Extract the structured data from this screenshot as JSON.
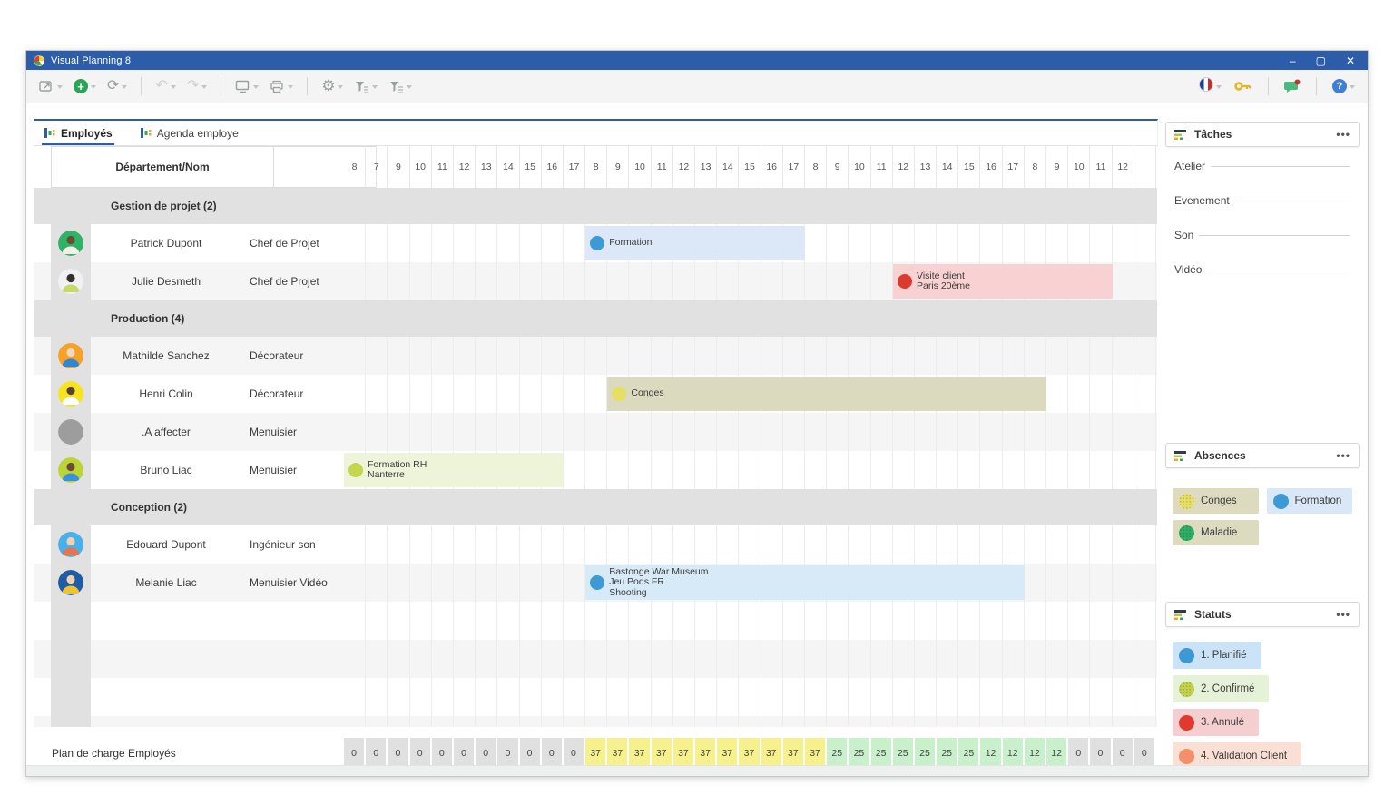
{
  "window": {
    "title": "Visual Planning 8",
    "controls": {
      "minimize": "–",
      "maximize": "▢",
      "close": "✕"
    }
  },
  "toolbar": {
    "left": [
      "window-new",
      "add",
      "refresh",
      "|",
      "undo",
      "redo",
      "|",
      "display",
      "print",
      "|",
      "settings",
      "filter-rows",
      "filter-columns"
    ],
    "right": [
      "language-french-flag",
      "key",
      "|",
      "share",
      "|",
      "help"
    ]
  },
  "tabs": [
    {
      "label": "Employés",
      "active": true
    },
    {
      "label": "Agenda employe",
      "active": false
    }
  ],
  "table": {
    "header": "Département/Nom",
    "rows": [
      {
        "type": "group",
        "label": "Gestion de projet (2)"
      },
      {
        "type": "person",
        "name": "Patrick Dupont",
        "role": "Chef de Projet",
        "shade": 0,
        "avatar": {
          "bg": "#2fb467",
          "skin": "#6d4c33",
          "shirt": "#f2efe6"
        },
        "event": {
          "start": 11,
          "span": 10,
          "bg": "#dce8f7",
          "dot": "#3e9ad5",
          "dotted": false,
          "lines": [
            "Formation"
          ]
        }
      },
      {
        "type": "person",
        "name": "Julie Desmeth",
        "role": "Chef de Projet",
        "shade": 1,
        "avatar": {
          "bg": "#f1f1f1",
          "skin": "#35302c",
          "shirt": "#c5d96c"
        },
        "event": {
          "start": 25,
          "span": 10,
          "bg": "#f8d2d3",
          "dot": "#dc392f",
          "dotted": false,
          "lines": [
            "Visite client",
            "Paris 20ème"
          ]
        }
      },
      {
        "type": "group",
        "label": "Production (4)"
      },
      {
        "type": "person",
        "name": "Mathilde Sanchez",
        "role": "Décorateur",
        "shade": 1,
        "avatar": {
          "bg": "#f6a229",
          "skin": "#f3d8bd",
          "shirt": "#2e86d4"
        }
      },
      {
        "type": "person",
        "name": "Henri Colin",
        "role": "Décorateur",
        "shade": 0,
        "avatar": {
          "bg": "#f7e41f",
          "skin": "#5a4130",
          "shirt": "#ffffff"
        },
        "event": {
          "start": 12,
          "span": 20,
          "bg": "#dbdabe",
          "dot": "#e6df64",
          "dotted": true,
          "lines": [
            "Conges"
          ]
        }
      },
      {
        "type": "person",
        "name": ".A affecter",
        "role": "Menuisier",
        "shade": 1,
        "avatar": {
          "bg": "#9d9d9d"
        }
      },
      {
        "type": "person",
        "name": "Bruno Liac",
        "role": "Menuisier",
        "shade": 0,
        "avatar": {
          "bg": "#bbd437",
          "skin": "#6d4c33",
          "shirt": "#3c8fd9"
        },
        "event": {
          "start": 0,
          "span": 10,
          "bg": "#eef4da",
          "dot": "#c5d54d",
          "dotted": true,
          "lines": [
            "Formation RH",
            "Nanterre"
          ]
        }
      },
      {
        "type": "group",
        "label": "Conception (2)"
      },
      {
        "type": "person",
        "name": "Edouard Dupont",
        "role": "Ingénieur son",
        "shade": 0,
        "avatar": {
          "bg": "#48b0ea",
          "skin": "#f3d0ae",
          "shirt": "#e8734c"
        }
      },
      {
        "type": "person",
        "name": "Melanie Liac",
        "role": "Menuisier Vidéo",
        "shade": 1,
        "avatar": {
          "bg": "#1e5da6",
          "skin": "#f3d0ae",
          "shirt": "#f2c12e"
        },
        "event": {
          "start": 11,
          "span": 20,
          "bg": "#d7eaf8",
          "dot": "#3e9ad5",
          "dotted": false,
          "lines": [
            "Bastonge War Museum",
            "Jeu Pods FR",
            "Shooting"
          ]
        }
      },
      {
        "type": "empty",
        "shade": 0
      },
      {
        "type": "empty",
        "shade": 1
      },
      {
        "type": "empty",
        "shade": 0
      },
      {
        "type": "empty",
        "shade": 1,
        "thin": true
      }
    ]
  },
  "timeline": {
    "hours": [
      "8",
      "7",
      "9",
      "10",
      "11",
      "12",
      "13",
      "14",
      "15",
      "16",
      "17",
      "8",
      "9",
      "10",
      "11",
      "12",
      "13",
      "14",
      "15",
      "16",
      "17",
      "8",
      "9",
      "10",
      "11",
      "12",
      "13",
      "14",
      "15",
      "16",
      "17",
      "8",
      "9",
      "10",
      "11",
      "12",
      ""
    ]
  },
  "footer": {
    "label": "Plan de charge Employés",
    "values": [
      {
        "v": "0",
        "tone": "gray"
      },
      {
        "v": "0",
        "tone": "gray"
      },
      {
        "v": "0",
        "tone": "gray"
      },
      {
        "v": "0",
        "tone": "gray"
      },
      {
        "v": "0",
        "tone": "gray"
      },
      {
        "v": "0",
        "tone": "gray"
      },
      {
        "v": "0",
        "tone": "gray"
      },
      {
        "v": "0",
        "tone": "gray"
      },
      {
        "v": "0",
        "tone": "gray"
      },
      {
        "v": "0",
        "tone": "gray"
      },
      {
        "v": "0",
        "tone": "gray"
      },
      {
        "v": "37",
        "tone": "yellow"
      },
      {
        "v": "37",
        "tone": "yellow"
      },
      {
        "v": "37",
        "tone": "yellow"
      },
      {
        "v": "37",
        "tone": "yellow"
      },
      {
        "v": "37",
        "tone": "yellow"
      },
      {
        "v": "37",
        "tone": "yellow"
      },
      {
        "v": "37",
        "tone": "yellow"
      },
      {
        "v": "37",
        "tone": "yellow"
      },
      {
        "v": "37",
        "tone": "yellow"
      },
      {
        "v": "37",
        "tone": "yellow"
      },
      {
        "v": "37",
        "tone": "yellow"
      },
      {
        "v": "25",
        "tone": "green"
      },
      {
        "v": "25",
        "tone": "green"
      },
      {
        "v": "25",
        "tone": "green"
      },
      {
        "v": "25",
        "tone": "green"
      },
      {
        "v": "25",
        "tone": "green"
      },
      {
        "v": "25",
        "tone": "green"
      },
      {
        "v": "25",
        "tone": "green"
      },
      {
        "v": "12",
        "tone": "green"
      },
      {
        "v": "12",
        "tone": "green"
      },
      {
        "v": "12",
        "tone": "green"
      },
      {
        "v": "12",
        "tone": "green"
      },
      {
        "v": "0",
        "tone": "gray"
      },
      {
        "v": "0",
        "tone": "gray"
      },
      {
        "v": "0",
        "tone": "gray"
      },
      {
        "v": "0",
        "tone": "gray"
      }
    ]
  },
  "sidebar": {
    "menu_icon": "•••",
    "tasks": {
      "title": "Tâches",
      "items": [
        "Atelier",
        "Evenement",
        "Son",
        "Vidéo"
      ]
    },
    "absences": {
      "title": "Absences",
      "chips": [
        {
          "label": "Conges",
          "bg": "#dcdbc0",
          "dot": "#e6df64",
          "dotted": true
        },
        {
          "label": "Formation",
          "bg": "#d9e7f7",
          "dot": "#3e9ad5",
          "dotted": false
        },
        {
          "label": "Maladie",
          "bg": "#dcdbc0",
          "dot": "#2fae68",
          "dotted": true
        }
      ]
    },
    "statuses": {
      "title": "Statuts",
      "chips": [
        {
          "label": "1. Planifié",
          "bg": "#cbe3f6",
          "dot": "#3d98d4",
          "dotted": false
        },
        {
          "label": "2. Confirmé",
          "bg": "#e6f2d8",
          "dot": "#c2d24d",
          "dotted": true
        },
        {
          "label": "3. Annulé",
          "bg": "#f5cfcf",
          "dot": "#e1392f",
          "dotted": false
        },
        {
          "label": "4. Validation Client",
          "bg": "#fadfd5",
          "dot": "#f19069",
          "dotted": false
        }
      ]
    }
  }
}
